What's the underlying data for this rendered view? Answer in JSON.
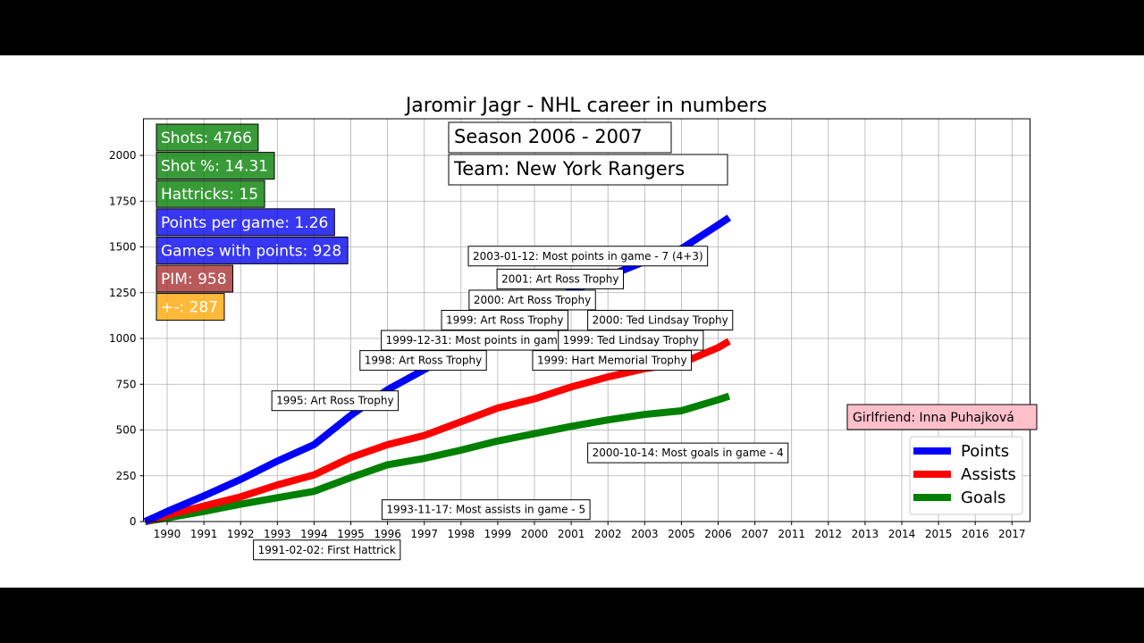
{
  "chart_data": {
    "type": "line",
    "title": "Jaromir Jagr - NHL career in numbers",
    "xlabel": "",
    "ylabel": "",
    "ylim": [
      0,
      2200
    ],
    "y_ticks": [
      0,
      250,
      500,
      750,
      1000,
      1250,
      1500,
      1750,
      2000
    ],
    "x_ticks": [
      "1990",
      "1991",
      "1992",
      "1993",
      "1994",
      "1995",
      "1996",
      "1997",
      "1998",
      "1999",
      "2000",
      "2001",
      "2002",
      "2003",
      "2005",
      "2006",
      "2007",
      "2011",
      "2012",
      "2013",
      "2014",
      "2015",
      "2016",
      "2017"
    ],
    "grid": true,
    "legend_position": "lower-right",
    "x_tick_index_range": [
      -0.6,
      23.0
    ],
    "series": [
      {
        "name": "Points",
        "color": "#0000ff",
        "x_index": [
          -0.6,
          0.0,
          1.0,
          2.0,
          3.0,
          4.0,
          5.0,
          6.0,
          7.0,
          8.0,
          9.0,
          10.0,
          11.0,
          12.0,
          13.0,
          14.0,
          15.0,
          15.3
        ],
        "values": [
          0,
          55,
          140,
          230,
          330,
          420,
          580,
          720,
          830,
          940,
          1060,
          1160,
          1260,
          1340,
          1420,
          1490,
          1620,
          1660
        ]
      },
      {
        "name": "Assists",
        "color": "#ff0000",
        "x_index": [
          -0.6,
          0.0,
          1.0,
          2.0,
          3.0,
          4.0,
          5.0,
          6.0,
          7.0,
          8.0,
          9.0,
          10.0,
          11.0,
          12.0,
          13.0,
          14.0,
          15.0,
          15.3
        ],
        "values": [
          0,
          35,
          85,
          135,
          200,
          255,
          350,
          420,
          470,
          545,
          620,
          670,
          735,
          790,
          835,
          865,
          950,
          985
        ]
      },
      {
        "name": "Goals",
        "color": "#008000",
        "x_index": [
          -0.6,
          0.0,
          1.0,
          2.0,
          3.0,
          4.0,
          5.0,
          6.0,
          7.0,
          8.0,
          9.0,
          10.0,
          11.0,
          12.0,
          13.0,
          14.0,
          15.0,
          15.3
        ],
        "values": [
          0,
          20,
          55,
          95,
          130,
          165,
          240,
          310,
          345,
          390,
          440,
          480,
          520,
          555,
          585,
          605,
          665,
          685
        ]
      }
    ],
    "stat_boxes": [
      {
        "text": "Shots: 4766",
        "color": "#007f00"
      },
      {
        "text": "Shot %: 14.31",
        "color": "#007f00"
      },
      {
        "text": "Hattricks: 15",
        "color": "#007f00"
      },
      {
        "text": "Points per game: 1.26",
        "color": "#0000ee"
      },
      {
        "text": "Games with points: 928",
        "color": "#0000ee"
      },
      {
        "text": "PIM: 958",
        "color": "#a52a2a"
      },
      {
        "text": "+-: 287",
        "color": "#ffa500"
      }
    ],
    "season": "Season 2006 - 2007",
    "team": "Team: New York Rangers",
    "girlfriend": "Girlfriend: Inna Puhajková",
    "girlfriend_color": "#ffc0cb",
    "annotations": [
      {
        "text": "2003-01-12: Most points in game - 7 (4+3)",
        "x_index": 8.2,
        "y": 1450
      },
      {
        "text": "2001: Art Ross Trophy",
        "x_index": 8.98,
        "y": 1325
      },
      {
        "text": "2000: Art Ross Trophy",
        "x_index": 8.22,
        "y": 1210
      },
      {
        "text": "1999: Art Ross Trophy",
        "x_index": 7.47,
        "y": 1100
      },
      {
        "text": "2000: Ted Lindsay Trophy",
        "x_index": 11.45,
        "y": 1100
      },
      {
        "text": "1999-12-31: Most points in game - 7 (4+3)",
        "x_index": 5.83,
        "y": 990
      },
      {
        "text": "1999: Ted Lindsay Trophy",
        "x_index": 10.65,
        "y": 990
      },
      {
        "text": "1998: Art Ross Trophy",
        "x_index": 5.25,
        "y": 880
      },
      {
        "text": "1999: Hart Memorial Trophy",
        "x_index": 9.95,
        "y": 880
      },
      {
        "text": "1995: Art Ross Trophy",
        "x_index": 2.85,
        "y": 660
      },
      {
        "text": "2000-10-14: Most goals in game - 4",
        "x_index": 11.45,
        "y": 375
      },
      {
        "text": "1993-11-17: Most assists in game - 5",
        "x_index": 5.85,
        "y": 65
      },
      {
        "text": "1991-02-02: First Hattrick",
        "x_index": 2.35,
        "y": -155
      }
    ]
  }
}
